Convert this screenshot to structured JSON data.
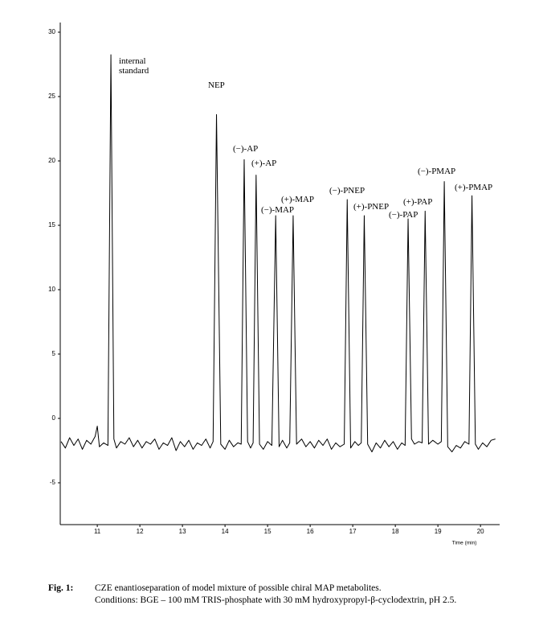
{
  "chart_data": {
    "type": "line",
    "x_label": "Time (min)",
    "xlim": [
      10.13,
      20.45
    ],
    "ylim": [
      -8.25,
      30.75
    ],
    "xticks": [
      11,
      12,
      13,
      14,
      15,
      16,
      17,
      18,
      19,
      20
    ],
    "yticks": [
      30,
      25,
      20,
      15,
      10,
      5,
      0,
      -5
    ],
    "annotations": [
      "internal standard",
      "NEP",
      "(−)-AP",
      "(+)-AP",
      "(−)-MAP",
      "(+)-MAP",
      "(−)-PNEP",
      "(+)-PNEP",
      "(−)-PAP",
      "(+)-PAP",
      "(−)-PMAP",
      "(+)-PMAP"
    ],
    "series": [
      {
        "color": "#000000",
        "x": [
          10.15,
          10.25,
          10.35,
          10.45,
          10.55,
          10.65,
          10.75,
          10.85,
          10.95,
          11.0,
          11.05,
          11.15,
          11.25,
          11.32,
          11.39,
          11.45,
          11.55,
          11.65,
          11.75,
          11.85,
          11.95,
          12.05,
          12.15,
          12.25,
          12.35,
          12.45,
          12.55,
          12.65,
          12.75,
          12.85,
          12.95,
          13.05,
          13.15,
          13.25,
          13.35,
          13.45,
          13.55,
          13.65,
          13.72,
          13.8,
          13.9,
          14.0,
          14.1,
          14.2,
          14.3,
          14.38,
          14.45,
          14.53,
          14.6,
          14.66,
          14.73,
          14.81,
          14.9,
          15.0,
          15.1,
          15.19,
          15.27,
          15.35,
          15.45,
          15.52,
          15.6,
          15.68,
          15.8,
          15.9,
          16.0,
          16.1,
          16.2,
          16.3,
          16.4,
          16.5,
          16.6,
          16.7,
          16.8,
          16.87,
          16.95,
          17.05,
          17.13,
          17.2,
          17.27,
          17.35,
          17.45,
          17.55,
          17.65,
          17.75,
          17.85,
          17.95,
          18.05,
          18.15,
          18.23,
          18.3,
          18.38,
          18.45,
          18.55,
          18.63,
          18.7,
          18.78,
          18.88,
          19.0,
          19.08,
          19.15,
          19.23,
          19.33,
          19.43,
          19.53,
          19.63,
          19.73,
          19.8,
          19.88,
          19.95,
          20.05,
          20.15,
          20.25,
          20.35
        ],
        "values": [
          -1.8,
          -2.3,
          -1.5,
          -2.1,
          -1.6,
          -2.4,
          -1.7,
          -2.0,
          -1.4,
          -0.6,
          -2.2,
          -1.9,
          -2.1,
          28.25,
          -1.6,
          -2.3,
          -1.8,
          -2.0,
          -1.5,
          -2.2,
          -1.7,
          -2.3,
          -1.8,
          -2.0,
          -1.6,
          -2.4,
          -1.9,
          -2.1,
          -1.5,
          -2.5,
          -1.8,
          -2.2,
          -1.7,
          -2.4,
          -1.9,
          -2.1,
          -1.6,
          -2.3,
          -1.8,
          23.6,
          -2.0,
          -2.4,
          -1.7,
          -2.2,
          -1.9,
          -2.0,
          20.1,
          -1.8,
          -2.3,
          -1.9,
          18.9,
          -2.0,
          -2.4,
          -1.8,
          -2.1,
          15.75,
          -2.2,
          -1.7,
          -2.3,
          -1.9,
          15.75,
          -2.0,
          -1.6,
          -2.2,
          -1.8,
          -2.3,
          -1.7,
          -2.1,
          -1.6,
          -2.4,
          -1.9,
          -2.2,
          -2.0,
          17.0,
          -2.3,
          -1.8,
          -2.1,
          -1.9,
          15.75,
          -2.0,
          -2.6,
          -1.9,
          -2.3,
          -1.7,
          -2.2,
          -1.8,
          -2.4,
          -1.9,
          -2.1,
          15.5,
          -1.6,
          -2.0,
          -1.8,
          -1.9,
          16.1,
          -2.0,
          -1.7,
          -2.0,
          -1.8,
          18.4,
          -2.2,
          -2.6,
          -2.1,
          -2.3,
          -1.8,
          -2.0,
          17.3,
          -2.0,
          -2.4,
          -1.9,
          -2.2,
          -1.7,
          -1.6
        ]
      }
    ]
  },
  "caption": {
    "label": "Fig. 1:",
    "lines": [
      "CZE enantioseparation of model mixture of possible chiral MAP metabolites.",
      "Conditions: BGE – 100 mM TRIS-phosphate with 30 mM hydroxypropyl-β-cyclodextrin, pH 2.5."
    ]
  }
}
